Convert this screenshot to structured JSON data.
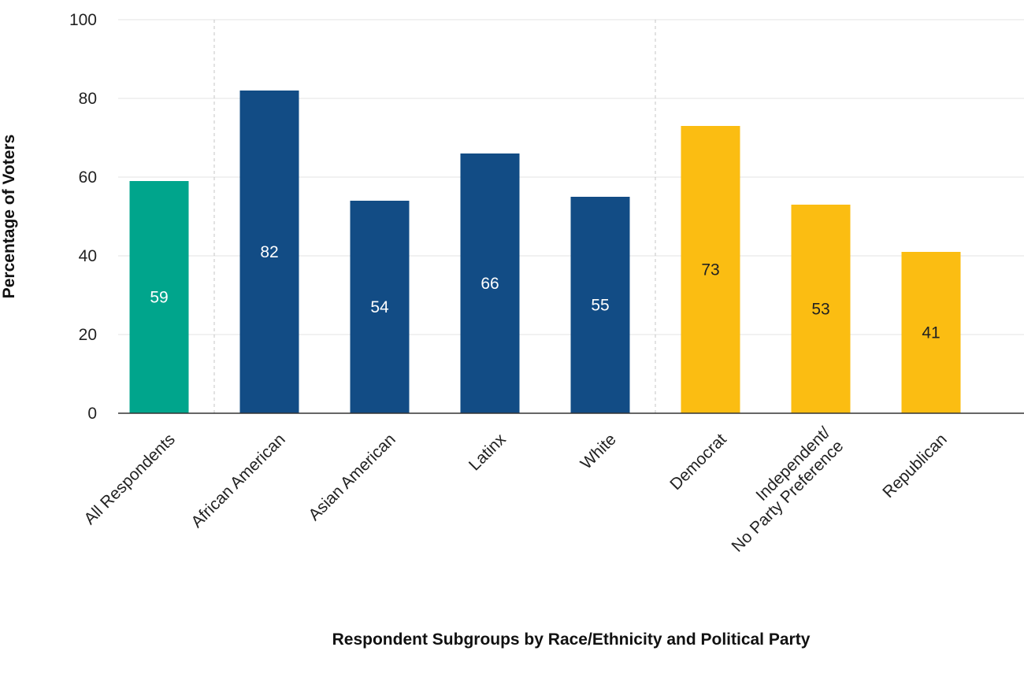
{
  "chart_data": {
    "type": "bar",
    "categories": [
      "All Respondents",
      "African American",
      "Asian American",
      "Latinx",
      "White",
      "Democrat",
      "Independent/\nNo Party Preference",
      "Republican"
    ],
    "values": [
      59,
      82,
      54,
      66,
      55,
      73,
      53,
      41
    ],
    "bar_colors": [
      "#00a58c",
      "#124c85",
      "#124c85",
      "#124c85",
      "#124c85",
      "#fbbd12",
      "#fbbd12",
      "#fbbd12"
    ],
    "data_label_colors": [
      "#ffffff",
      "#ffffff",
      "#ffffff",
      "#ffffff",
      "#ffffff",
      "#222222",
      "#222222",
      "#222222"
    ],
    "title": "",
    "xlabel": "Respondent Subgroups by Race/Ethnicity and Political Party",
    "ylabel": "Percentage of Voters",
    "ylim": [
      0,
      100
    ],
    "yticks": [
      "0",
      "20",
      "40",
      "60",
      "80",
      "100"
    ],
    "grid": true,
    "legend": "none",
    "group_separators_after": [
      0,
      4
    ]
  }
}
